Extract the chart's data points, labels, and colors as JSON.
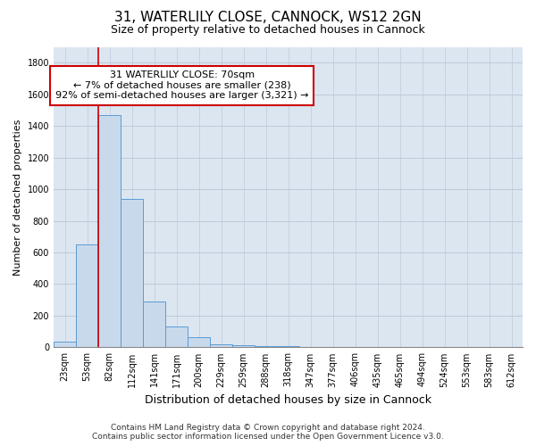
{
  "title_line1": "31, WATERLILY CLOSE, CANNOCK, WS12 2GN",
  "title_line2": "Size of property relative to detached houses in Cannock",
  "xlabel": "Distribution of detached houses by size in Cannock",
  "ylabel": "Number of detached properties",
  "categories": [
    "23sqm",
    "53sqm",
    "82sqm",
    "112sqm",
    "141sqm",
    "171sqm",
    "200sqm",
    "229sqm",
    "259sqm",
    "288sqm",
    "318sqm",
    "347sqm",
    "377sqm",
    "406sqm",
    "435sqm",
    "465sqm",
    "494sqm",
    "524sqm",
    "553sqm",
    "583sqm",
    "612sqm"
  ],
  "values": [
    35,
    650,
    1470,
    940,
    290,
    130,
    65,
    22,
    12,
    10,
    6,
    5,
    5,
    2,
    2,
    1,
    1,
    1,
    1,
    1,
    1
  ],
  "bar_color": "#c9d9ec",
  "bar_edge_color": "#5b9bd5",
  "vline_color": "#cc0000",
  "annotation_text": "31 WATERLILY CLOSE: 70sqm\n← 7% of detached houses are smaller (238)\n92% of semi-detached houses are larger (3,321) →",
  "annotation_box_color": "#ffffff",
  "annotation_box_edge": "#cc0000",
  "ylim": [
    0,
    1900
  ],
  "yticks": [
    0,
    200,
    400,
    600,
    800,
    1000,
    1200,
    1400,
    1600,
    1800
  ],
  "footer_line1": "Contains HM Land Registry data © Crown copyright and database right 2024.",
  "footer_line2": "Contains public sector information licensed under the Open Government Licence v3.0.",
  "grid_color": "#c0c8d8",
  "bg_color": "#dce6f1",
  "title_fontsize": 11,
  "subtitle_fontsize": 9,
  "xlabel_fontsize": 9,
  "ylabel_fontsize": 8,
  "tick_fontsize": 7,
  "footer_fontsize": 6.5
}
